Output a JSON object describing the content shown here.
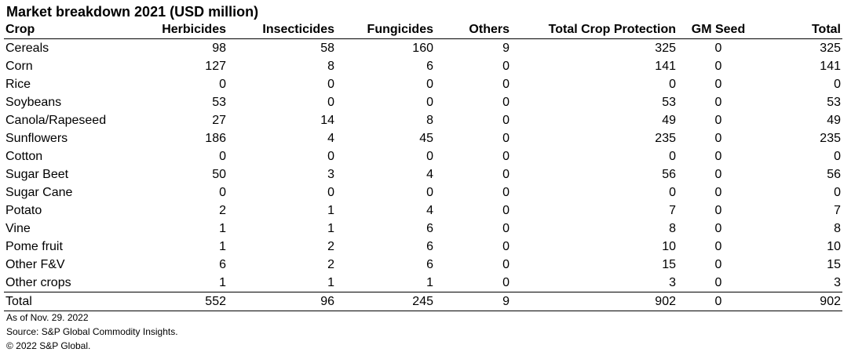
{
  "chart_data": {
    "type": "table",
    "title": "Market breakdown 2021 (USD million)",
    "columns": [
      "Crop",
      "Herbicides",
      "Insecticides",
      "Fungicides",
      "Others",
      "Total Crop Protection",
      "GM Seed",
      "Total"
    ],
    "rows": [
      [
        "Cereals",
        "98",
        "58",
        "160",
        "9",
        "325",
        "0",
        "325"
      ],
      [
        "Corn",
        "127",
        "8",
        "6",
        "0",
        "141",
        "0",
        "141"
      ],
      [
        "Rice",
        "0",
        "0",
        "0",
        "0",
        "0",
        "0",
        "0"
      ],
      [
        "Soybeans",
        "53",
        "0",
        "0",
        "0",
        "53",
        "0",
        "53"
      ],
      [
        "Canola/Rapeseed",
        "27",
        "14",
        "8",
        "0",
        "49",
        "0",
        "49"
      ],
      [
        "Sunflowers",
        "186",
        "4",
        "45",
        "0",
        "235",
        "0",
        "235"
      ],
      [
        "Cotton",
        "0",
        "0",
        "0",
        "0",
        "0",
        "0",
        "0"
      ],
      [
        "Sugar Beet",
        "50",
        "3",
        "4",
        "0",
        "56",
        "0",
        "56"
      ],
      [
        "Sugar Cane",
        "0",
        "0",
        "0",
        "0",
        "0",
        "0",
        "0"
      ],
      [
        "Potato",
        "2",
        "1",
        "4",
        "0",
        "7",
        "0",
        "7"
      ],
      [
        "Vine",
        "1",
        "1",
        "6",
        "0",
        "8",
        "0",
        "8"
      ],
      [
        "Pome fruit",
        "1",
        "2",
        "6",
        "0",
        "10",
        "0",
        "10"
      ],
      [
        "Other F&V",
        "6",
        "2",
        "6",
        "0",
        "15",
        "0",
        "15"
      ],
      [
        "Other crops",
        "1",
        "1",
        "1",
        "0",
        "3",
        "0",
        "3"
      ]
    ],
    "total_row": [
      "Total",
      "552",
      "96",
      "245",
      "9",
      "902",
      "0",
      "902"
    ]
  },
  "notes": {
    "date": "As of Nov. 29. 2022",
    "source": "Source: S&P Global Commodity Insights.",
    "copyright": "© 2022 S&P Global."
  }
}
